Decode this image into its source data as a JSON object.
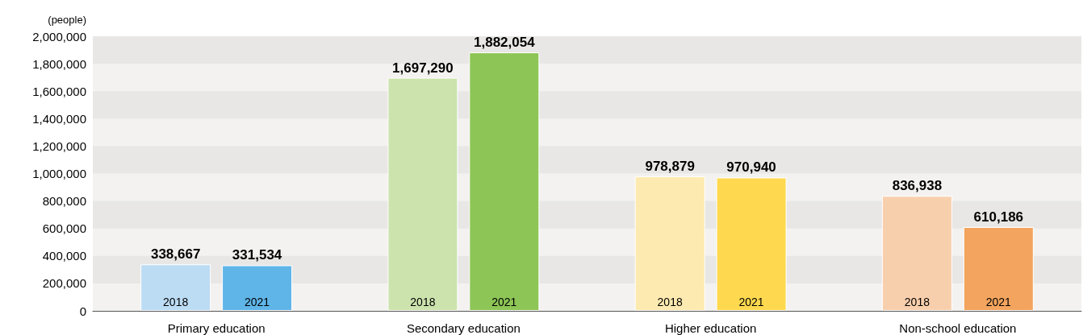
{
  "chart_data": {
    "type": "bar",
    "ylabel": "(people)",
    "categories": [
      "Primary education",
      "Secondary education",
      "Higher education",
      "Non-school education"
    ],
    "series": [
      {
        "name": "2018",
        "colors": [
          "#bcdcf4",
          "#cce3ad",
          "#fdeab0",
          "#f8cfad"
        ],
        "values": [
          338667,
          1697290,
          978879,
          836938
        ],
        "value_labels": [
          "338,667",
          "1,697,290",
          "978,879",
          "836,938"
        ]
      },
      {
        "name": "2021",
        "colors": [
          "#5fb5e8",
          "#8dc556",
          "#fed94f",
          "#f3a45e"
        ],
        "values": [
          331534,
          1882054,
          970940,
          610186
        ],
        "value_labels": [
          "331,534",
          "1,882,054",
          "970,940",
          "610,186"
        ]
      }
    ],
    "ylim": [
      0,
      2000000
    ],
    "yticks": [
      0,
      {
        "value": 200000,
        "label": "200,000"
      },
      {
        "value": 400000,
        "label": "400,000"
      },
      {
        "value": 600000,
        "label": "600,000"
      },
      {
        "value": 800000,
        "label": "800,000"
      },
      {
        "value": 1000000,
        "label": "1,000,000"
      },
      {
        "value": 1200000,
        "label": "1,200,000"
      },
      {
        "value": 1400000,
        "label": "1,400,000"
      },
      {
        "value": 1600000,
        "label": "1,600,000"
      },
      {
        "value": 1800000,
        "label": "1,800,000"
      },
      {
        "value": 2000000,
        "label": "2,000,000"
      }
    ],
    "bands": [
      {
        "axis": "y",
        "from": 200000,
        "to": 400000,
        "color": "#e8e7e5"
      },
      {
        "axis": "y",
        "from": 600000,
        "to": 800000,
        "color": "#e8e7e5"
      },
      {
        "axis": "y",
        "from": 1000000,
        "to": 1200000,
        "color": "#e8e7e5"
      },
      {
        "axis": "y",
        "from": 1400000,
        "to": 1600000,
        "color": "#e8e7e5"
      },
      {
        "axis": "y",
        "from": 1800000,
        "to": 2000000,
        "color": "#e8e7e5"
      }
    ],
    "legend": false
  }
}
